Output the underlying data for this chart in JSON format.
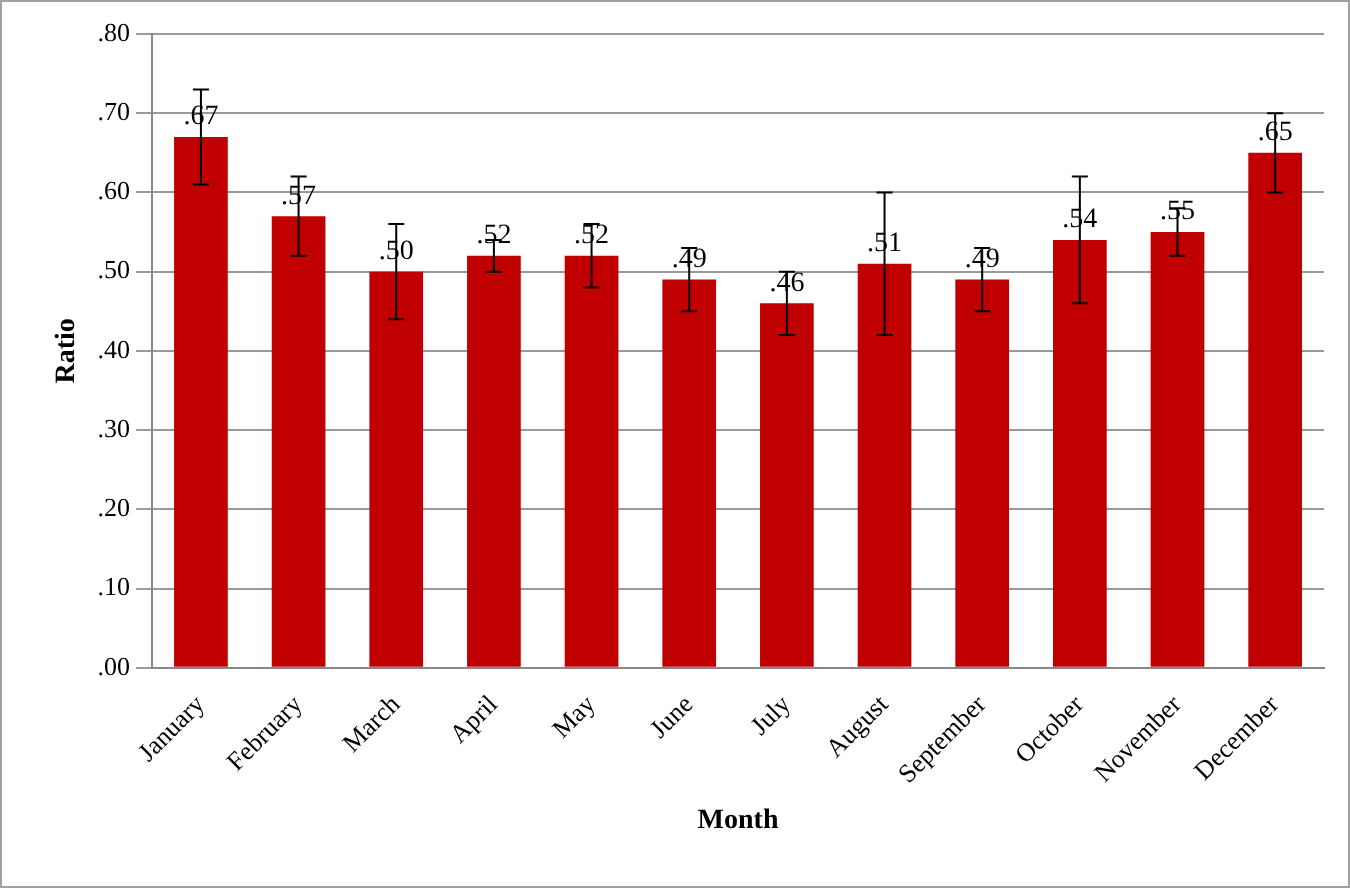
{
  "chart_data": {
    "type": "bar",
    "xlabel": "Month",
    "ylabel": "Ratio",
    "categories": [
      "January",
      "February",
      "March",
      "April",
      "May",
      "June",
      "July",
      "August",
      "September",
      "October",
      "November",
      "December"
    ],
    "values": [
      0.67,
      0.57,
      0.5,
      0.52,
      0.52,
      0.49,
      0.46,
      0.51,
      0.49,
      0.54,
      0.55,
      0.65
    ],
    "value_labels": [
      ".67",
      ".57",
      ".50",
      ".52",
      ".52",
      ".49",
      ".46",
      ".51",
      ".49",
      ".54",
      ".55",
      ".65"
    ],
    "errors": [
      0.06,
      0.05,
      0.06,
      0.02,
      0.04,
      0.04,
      0.04,
      0.09,
      0.04,
      0.08,
      0.03,
      0.05
    ],
    "color": "#c00000",
    "ylim": [
      0,
      0.8
    ],
    "yticks": [
      {
        "value": 0,
        "label": ".00"
      },
      {
        "value": 0.1,
        "label": ".10"
      },
      {
        "value": 0.2,
        "label": ".20"
      },
      {
        "value": 0.3,
        "label": ".30"
      },
      {
        "value": 0.4,
        "label": ".40"
      },
      {
        "value": 0.5,
        "label": ".50"
      },
      {
        "value": 0.6,
        "label": ".60"
      },
      {
        "value": 0.7,
        "label": ".70"
      },
      {
        "value": 0.8,
        "label": ".80"
      }
    ],
    "grid": "y",
    "legend": false
  }
}
